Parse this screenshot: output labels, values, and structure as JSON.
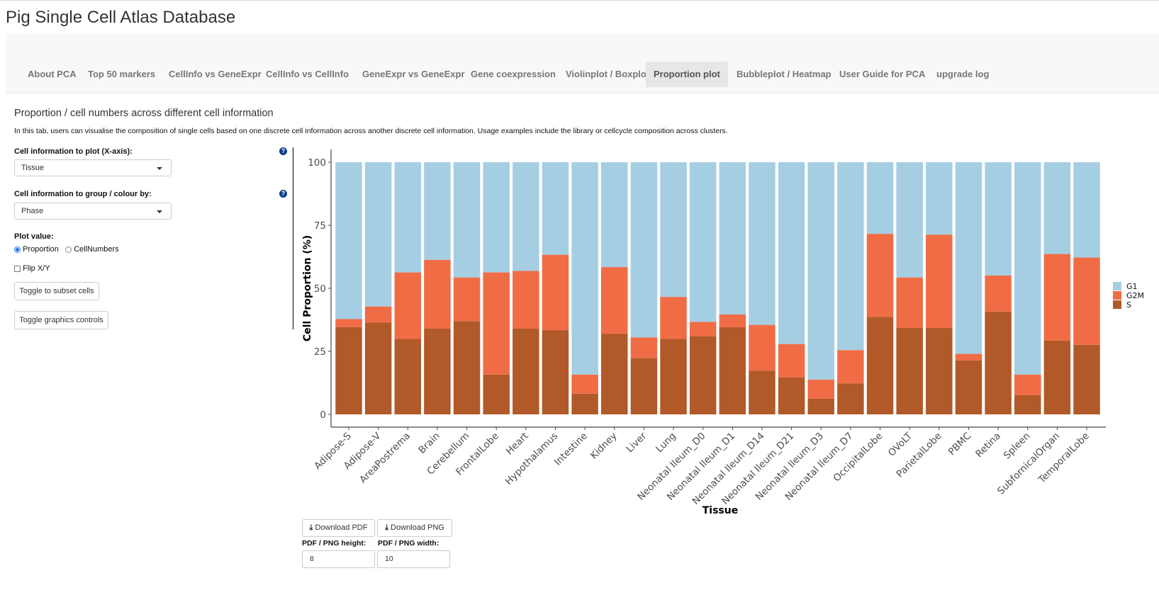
{
  "app": {
    "title": "Pig Single Cell Atlas Database"
  },
  "nav": {
    "tabs": [
      {
        "label": "About PCA",
        "active": false
      },
      {
        "label": "Top 50 markers",
        "active": false
      },
      {
        "label": "CellInfo vs GeneExpr",
        "active": false
      },
      {
        "label": "CellInfo vs CellInfo",
        "active": false
      },
      {
        "label": "GeneExpr vs GeneExpr",
        "active": false
      },
      {
        "label": "Gene coexpression",
        "active": false
      },
      {
        "label": "Violinplot / Boxplot",
        "active": false
      },
      {
        "label": "Proportion plot",
        "active": true
      },
      {
        "label": "Bubbleplot / Heatmap",
        "active": false
      },
      {
        "label": "User Guide for PCA",
        "active": false
      },
      {
        "label": "upgrade log",
        "active": false
      }
    ]
  },
  "section": {
    "title": "Proportion / cell numbers across different cell information",
    "description": "In this tab, users can visualise the composition of single cells based on one discrete cell information across another discrete cell information. Usage examples include the library or cellcycle composition across clusters."
  },
  "controls": {
    "x_label": "Cell information to plot (X-axis):",
    "x_value": "Tissue",
    "group_label": "Cell information to group / colour by:",
    "group_value": "Phase",
    "plot_value_label": "Plot value:",
    "plot_value_options": [
      "Proportion",
      "CellNumbers"
    ],
    "plot_value_selected": "Proportion",
    "flip_label": "Flip X/Y",
    "flip_checked": false,
    "subset_button": "Toggle to subset cells",
    "graphics_button": "Toggle graphics controls",
    "help_icon": "question-circle-icon"
  },
  "downloads": {
    "pdf_button": "Download PDF",
    "png_button": "Download PNG",
    "download_icon": "download-icon",
    "height_label": "PDF / PNG height:",
    "height_value": "8",
    "width_label": "PDF / PNG width:",
    "width_value": "10"
  },
  "chart_data": {
    "type": "bar",
    "stacked": true,
    "xlabel": "Tissue",
    "ylabel": "Cell Proportion (%)",
    "ylim": [
      0,
      100
    ],
    "yticks": [
      0,
      25,
      50,
      75,
      100
    ],
    "grid": false,
    "legend_position": "right",
    "categories": [
      "Adipose-S",
      "Adipose-V",
      "AreaPostrema",
      "Brain",
      "Cerebellum",
      "FrontalLobe",
      "Heart",
      "Hypothalamus",
      "Intestine",
      "Kidney",
      "Liver",
      "Lung",
      "Neonatal Ileum_D0",
      "Neonatal Ileum_D1",
      "Neonatal Ileum_D14",
      "Neonatal Ileum_D21",
      "Neonatal Ileum_D3",
      "Neonatal Ileum_D7",
      "OccipitalLobe",
      "OVoLT",
      "ParietalLobe",
      "PBMC",
      "Retina",
      "Spleen",
      "SubfornicalOrgan",
      "TemporalLobe"
    ],
    "series": [
      {
        "name": "S",
        "color": "#b15928",
        "values": [
          34.6,
          36.4,
          29.9,
          34.0,
          37.0,
          15.8,
          34.0,
          33.4,
          8.2,
          32.0,
          22.3,
          29.9,
          31.0,
          34.6,
          17.3,
          14.7,
          6.2,
          12.3,
          38.7,
          34.3,
          34.3,
          21.4,
          40.8,
          7.6,
          29.3,
          27.6
        ]
      },
      {
        "name": "G2M",
        "color": "#f06c45",
        "values": [
          3.2,
          6.4,
          26.4,
          27.3,
          17.3,
          40.5,
          22.9,
          29.9,
          7.6,
          26.4,
          8.2,
          16.7,
          5.7,
          5.0,
          18.2,
          13.2,
          7.6,
          13.2,
          32.9,
          20.0,
          37.0,
          2.6,
          14.3,
          8.2,
          34.3,
          34.6
        ]
      },
      {
        "name": "G1",
        "color": "#a6cee3",
        "values": [
          62.2,
          57.2,
          43.7,
          38.7,
          45.7,
          43.7,
          43.1,
          36.7,
          84.2,
          41.6,
          69.5,
          53.4,
          63.3,
          60.4,
          64.5,
          72.1,
          86.2,
          74.5,
          28.4,
          45.7,
          28.7,
          76.0,
          44.9,
          84.2,
          36.4,
          37.8
        ]
      }
    ]
  }
}
